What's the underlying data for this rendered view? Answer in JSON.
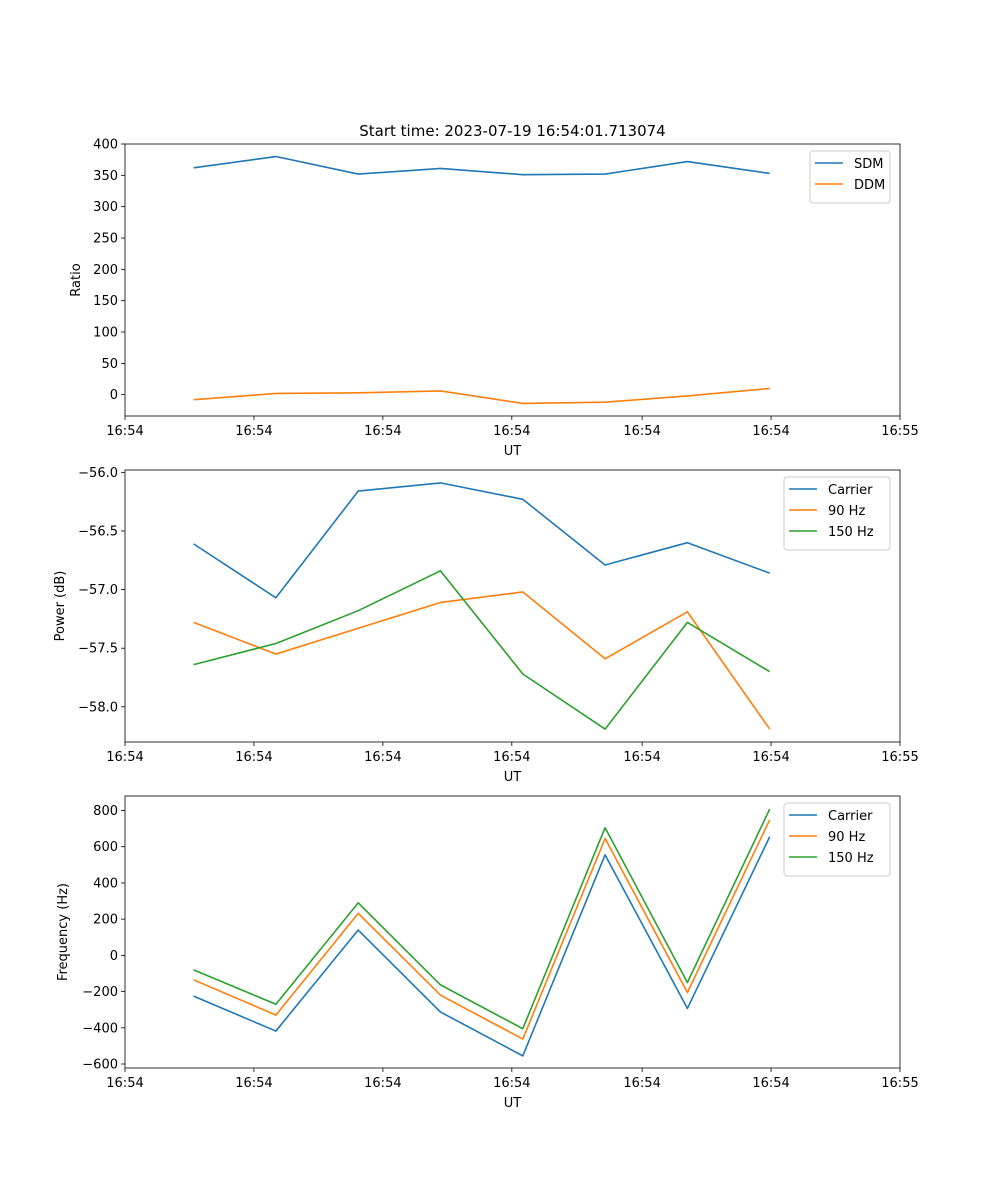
{
  "figure": {
    "title": "Start time: 2023-07-19 16:54:01.713074"
  },
  "colors": {
    "blue": "#1f77b4",
    "orange": "#ff7f0e",
    "green": "#2ca02c"
  },
  "chart_data": [
    {
      "type": "line",
      "title": "Start time: 2023-07-19 16:54:01.713074",
      "xlabel": "UT",
      "ylabel": "Ratio",
      "x": [
        0.5,
        1.1,
        1.7,
        2.3,
        2.9,
        3.5,
        4.1,
        4.7
      ],
      "xlim": [
        0,
        5.65
      ],
      "x_ticks": [
        0,
        0.94,
        1.88,
        2.82,
        3.77,
        4.71,
        5.65
      ],
      "x_tick_labels": [
        "16:54",
        "16:54",
        "16:54",
        "16:54",
        "16:54",
        "16:54",
        "16:55"
      ],
      "ylim": [
        -34,
        400
      ],
      "y_ticks": [
        0,
        50,
        100,
        150,
        200,
        250,
        300,
        350,
        400
      ],
      "y_tick_labels": [
        "0",
        "50",
        "100",
        "150",
        "200",
        "250",
        "300",
        "350",
        "400"
      ],
      "legend_position": "top-right",
      "series": [
        {
          "name": "SDM",
          "color": "#1f77b4",
          "values": [
            362,
            380,
            352,
            361,
            351,
            352,
            372,
            353
          ]
        },
        {
          "name": "DDM",
          "color": "#ff7f0e",
          "values": [
            -8,
            2,
            3,
            6,
            -14,
            -12,
            -2,
            10
          ]
        }
      ]
    },
    {
      "type": "line",
      "xlabel": "UT",
      "ylabel": "Power (dB)",
      "x": [
        0.5,
        1.1,
        1.7,
        2.3,
        2.9,
        3.5,
        4.1,
        4.7
      ],
      "xlim": [
        0,
        5.65
      ],
      "x_ticks": [
        0,
        0.94,
        1.88,
        2.82,
        3.77,
        4.71,
        5.65
      ],
      "x_tick_labels": [
        "16:54",
        "16:54",
        "16:54",
        "16:54",
        "16:54",
        "16:54",
        "16:55"
      ],
      "ylim": [
        -58.3,
        -55.98
      ],
      "y_ticks": [
        -58.0,
        -57.5,
        -57.0,
        -56.5,
        -56.0
      ],
      "y_tick_labels": [
        "−58.0",
        "−57.5",
        "−57.0",
        "−56.5",
        "−56.0"
      ],
      "legend_position": "top-right",
      "series": [
        {
          "name": "Carrier",
          "color": "#1f77b4",
          "values": [
            -56.61,
            -57.07,
            -56.16,
            -56.09,
            -56.23,
            -56.79,
            -56.6,
            -56.86
          ]
        },
        {
          "name": "90 Hz",
          "color": "#ff7f0e",
          "values": [
            -57.28,
            -57.55,
            -57.33,
            -57.11,
            -57.02,
            -57.59,
            -57.19,
            -58.19
          ]
        },
        {
          "name": "150 Hz",
          "color": "#2ca02c",
          "values": [
            -57.64,
            -57.46,
            -57.18,
            -56.84,
            -57.72,
            -58.19,
            -57.28,
            -57.7
          ]
        }
      ]
    },
    {
      "type": "line",
      "xlabel": "UT",
      "ylabel": "Frequency (Hz)",
      "x": [
        0.5,
        1.1,
        1.7,
        2.3,
        2.9,
        3.5,
        4.1,
        4.7
      ],
      "xlim": [
        0,
        5.65
      ],
      "x_ticks": [
        0,
        0.94,
        1.88,
        2.82,
        3.77,
        4.71,
        5.65
      ],
      "x_tick_labels": [
        "16:54",
        "16:54",
        "16:54",
        "16:54",
        "16:54",
        "16:54",
        "16:55"
      ],
      "ylim": [
        -622,
        880
      ],
      "y_ticks": [
        -600,
        -400,
        -200,
        0,
        200,
        400,
        600,
        800
      ],
      "y_tick_labels": [
        "−600",
        "−400",
        "−200",
        "0",
        "200",
        "400",
        "600",
        "800"
      ],
      "legend_position": "top-right",
      "series": [
        {
          "name": "Carrier",
          "color": "#1f77b4",
          "values": [
            -225,
            -418,
            140,
            -313,
            -555,
            555,
            -293,
            655
          ]
        },
        {
          "name": "90 Hz",
          "color": "#ff7f0e",
          "values": [
            -135,
            -330,
            232,
            -220,
            -462,
            645,
            -205,
            748
          ]
        },
        {
          "name": "150 Hz",
          "color": "#2ca02c",
          "values": [
            -80,
            -270,
            290,
            -163,
            -405,
            705,
            -150,
            808
          ]
        }
      ]
    }
  ]
}
